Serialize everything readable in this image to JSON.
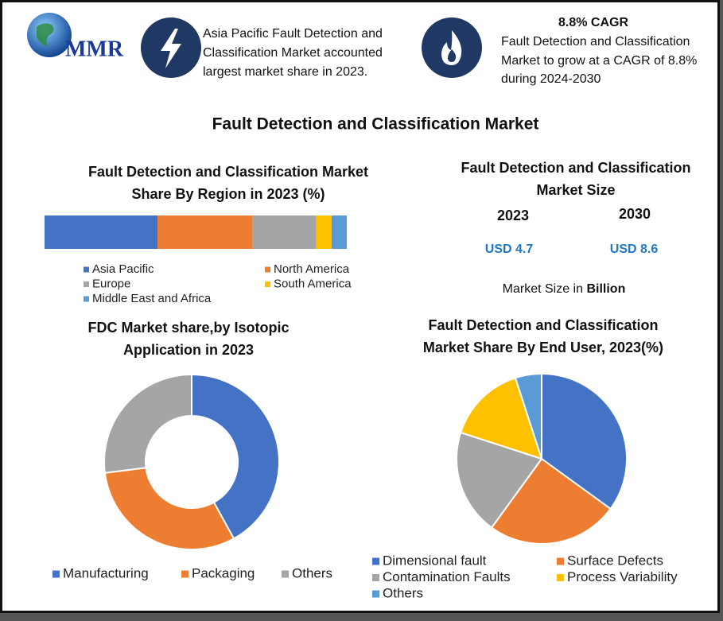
{
  "header": {
    "logo": "MMR",
    "callouts": [
      {
        "lines": [
          "Asia Pacific Fault Detection and",
          "Classification Market accounted",
          "largest market share in 2023."
        ]
      },
      {
        "heading": "8.8% CAGR",
        "lines": [
          "Fault Detection and Classification",
          "Market to grow at a CAGR of 8.8%",
          "during 2024-2030"
        ]
      }
    ]
  },
  "title": "Fault Detection and Classification Market",
  "market_size": {
    "title": [
      "Fault Detection and Classification",
      "Market Size"
    ],
    "years": [
      "2023",
      "2030"
    ],
    "values": [
      "USD 4.7",
      "USD 8.6"
    ],
    "note": [
      "Market Size in",
      "Billion"
    ]
  },
  "chart_data": [
    {
      "type": "stacked_bar",
      "title": [
        "Fault Detection and Classification  Market",
        "Share By Region in 2023 (%)"
      ],
      "categories": [
        "Asia Pacific",
        "North America",
        "Europe",
        "South America",
        "Middle East and Africa"
      ],
      "values": [
        37,
        31,
        21,
        5,
        5
      ],
      "colors": [
        "#4472c4",
        "#ed7d31",
        "#a5a5a5",
        "#ffc000",
        "#5b9bd5"
      ]
    },
    {
      "type": "donut",
      "title": [
        "FDC Market share,by Isotopic",
        "Application  in 2023"
      ],
      "categories": [
        "Manufacturing",
        "Packaging",
        "Others"
      ],
      "values": [
        42,
        31,
        27
      ],
      "colors": [
        "#4472c4",
        "#ed7d31",
        "#a5a5a5"
      ]
    },
    {
      "type": "pie",
      "title": [
        "Fault Detection and Classification",
        "Market Share By End User, 2023(%)"
      ],
      "categories": [
        "Dimensional fault",
        "Surface Defects",
        "Contamination Faults",
        "Process Variability",
        "Others"
      ],
      "values": [
        35,
        25,
        20,
        15,
        5
      ],
      "colors": [
        "#4472c4",
        "#ed7d31",
        "#a5a5a5",
        "#ffc000",
        "#5b9bd5"
      ]
    }
  ]
}
